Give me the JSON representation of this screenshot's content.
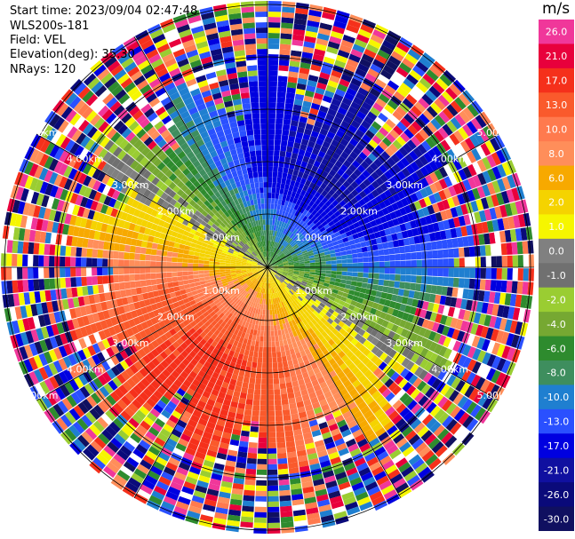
{
  "header": {
    "start_time": "Start time: 2023/09/04 02:47:48",
    "instrument": "WLS200s-181",
    "field": "Field: VEL",
    "elevation": "Elevation(deg): 35.30",
    "nrays": "NRays: 120"
  },
  "plot": {
    "range_labels": [
      "1.00km",
      "2.00km",
      "3.00km",
      "4.00km",
      "5.00km"
    ]
  },
  "colorbar": {
    "unit": "m/s",
    "ticks": [
      "26.0",
      "21.0",
      "17.0",
      "13.0",
      "10.0",
      "8.0",
      "6.0",
      "2.0",
      "1.0",
      "0.0",
      "-1.0",
      "-2.0",
      "-4.0",
      "-6.0",
      "-8.0",
      "-10.0",
      "-13.0",
      "-17.0",
      "-21.0",
      "-26.0",
      "-30.0"
    ],
    "colors": [
      "#f0379a",
      "#e8003c",
      "#f5301b",
      "#fa5a2c",
      "#ff7a4e",
      "#ff8e5a",
      "#f7a900",
      "#f5d300",
      "#f6f600",
      "#808080",
      "#707070",
      "#9acd32",
      "#76a832",
      "#2e8b2e",
      "#3e8e5e",
      "#1f7fd0",
      "#2a50ff",
      "#0000e0",
      "#1010a0",
      "#0a0a7a",
      "#101060"
    ]
  }
}
